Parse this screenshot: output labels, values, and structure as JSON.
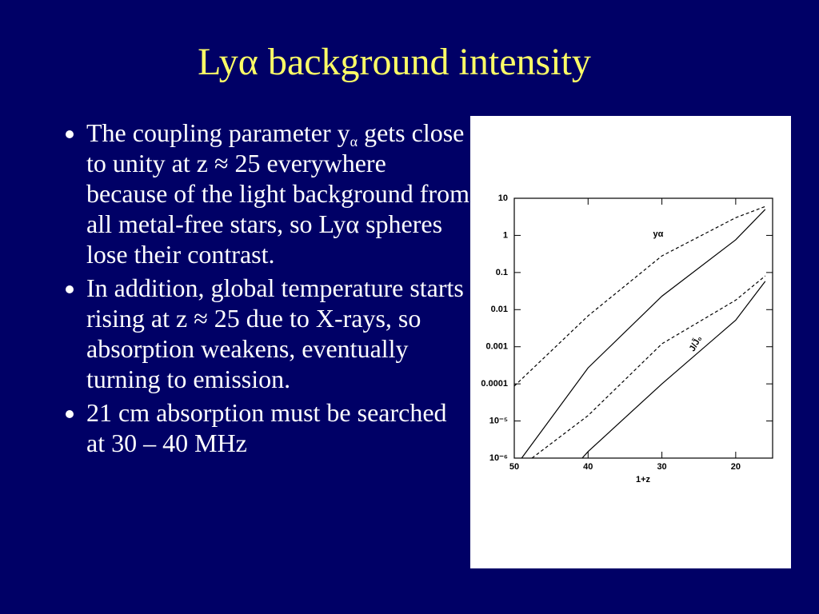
{
  "title": "Lyα background intensity",
  "bullets": [
    {
      "text_before": "The coupling parameter y",
      "subscript": "α",
      "text_after": " gets close to unity at z ≈ 25 everywhere because of the light background from all metal-free stars, so Lyα spheres lose their contrast."
    },
    {
      "text": "In addition, global temperature starts rising at z ≈ 25 due to X-rays, so absorption weakens, eventually turning to emission."
    },
    {
      "text": "21 cm absorption must be searched at 30 – 40 MHz"
    }
  ],
  "chart_data": {
    "type": "line",
    "x_label": "1+z",
    "xlim": [
      50,
      15
    ],
    "xticks": [
      50,
      40,
      30,
      20
    ],
    "ylim": [
      1e-06,
      10
    ],
    "log_y": true,
    "yticks": [
      10,
      1,
      0.1,
      0.01,
      0.001,
      0.0001,
      {
        "value": 1e-05,
        "label": "10⁻⁵"
      },
      {
        "value": 1e-06,
        "label": "10⁻⁶"
      }
    ],
    "annotations": [
      "yα",
      "J/J̃₀"
    ],
    "series": [
      {
        "color": "#000000",
        "dashed": true,
        "x": [
          50,
          40,
          30,
          20,
          16
        ],
        "values": [
          8.7e-05,
          0.0068,
          0.28,
          3.0,
          6.0
        ]
      },
      {
        "color": "#000000",
        "dashed": false,
        "x": [
          49,
          40,
          30,
          20,
          16
        ],
        "values": [
          1e-06,
          0.00027,
          0.023,
          0.76,
          5.0
        ]
      },
      {
        "color": "#000000",
        "dashed": true,
        "x": [
          47.6,
          40,
          30,
          20,
          16
        ],
        "values": [
          1e-06,
          1.4e-05,
          0.0012,
          0.018,
          0.081
        ]
      },
      {
        "color": "#000000",
        "dashed": false,
        "x": [
          40.8,
          40,
          30,
          20,
          16
        ],
        "values": [
          1e-06,
          1.5e-06,
          0.0001,
          0.0052,
          0.058
        ]
      }
    ]
  }
}
